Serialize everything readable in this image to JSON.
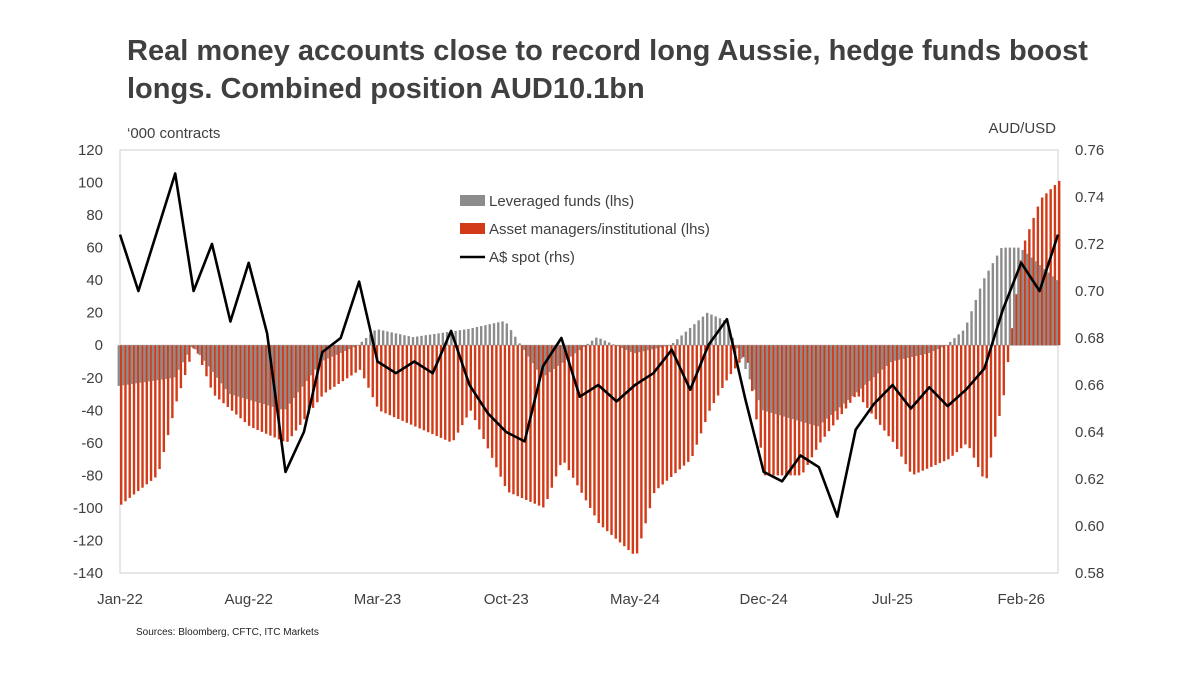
{
  "title": "Real money accounts close to record long Aussie, hedge funds boost longs. Combined position AUD10.1bn",
  "source": "Sources: Bloomberg, CFTC, ITC Markets",
  "colors": {
    "leveraged": "#8c8c8c",
    "asset_managers": "#d23a18",
    "spot": "#000000",
    "text": "#404040"
  },
  "chart_data": {
    "type": "bar",
    "left_axis_unit": "‘000 contracts",
    "right_axis_unit": "AUD/USD",
    "ylim_left": [
      -140,
      120
    ],
    "ylim_right": [
      0.58,
      0.76
    ],
    "yticks_left": [
      "120",
      "100",
      "80",
      "60",
      "40",
      "20",
      "0",
      "-20",
      "-40",
      "-60",
      "-80",
      "-100",
      "-120",
      "-140"
    ],
    "yticks_right": [
      "0.76",
      "0.74",
      "0.72",
      "0.70",
      "0.68",
      "0.66",
      "0.64",
      "0.62",
      "0.60",
      "0.58"
    ],
    "xticks": [
      "Jan-22",
      "Aug-22",
      "Mar-23",
      "Oct-23",
      "May-24",
      "Dec-24",
      "Jul-25",
      "Feb-26"
    ],
    "x_start": "Jan-22",
    "x_end": "Apr-26",
    "legend_position": "top-center",
    "series": [
      {
        "name": "Leveraged funds (lhs)",
        "kind": "bar",
        "axis": "left",
        "points": [
          [
            "Jan-22",
            -25
          ],
          [
            "Apr-22",
            -20
          ],
          [
            "May-22",
            0
          ],
          [
            "Jul-22",
            -30
          ],
          [
            "Oct-22",
            -40
          ],
          [
            "Dec-22",
            -10
          ],
          [
            "Feb-23",
            0
          ],
          [
            "Mar-23",
            10
          ],
          [
            "May-23",
            5
          ],
          [
            "Aug-23",
            10
          ],
          [
            "Oct-23",
            15
          ],
          [
            "Dec-23",
            -20
          ],
          [
            "Mar-24",
            5
          ],
          [
            "May-24",
            -5
          ],
          [
            "Jul-24",
            0
          ],
          [
            "Sep-24",
            20
          ],
          [
            "Oct-24",
            15
          ],
          [
            "Dec-24",
            -40
          ],
          [
            "Mar-25",
            -50
          ],
          [
            "May-25",
            -30
          ],
          [
            "Jul-25",
            -10
          ],
          [
            "Sep-25",
            -5
          ],
          [
            "Oct-25",
            0
          ],
          [
            "Nov-25",
            10
          ],
          [
            "Dec-25",
            40
          ],
          [
            "Jan-26",
            60
          ],
          [
            "Feb-26",
            60
          ],
          [
            "Mar-26",
            50
          ],
          [
            "Apr-26",
            40
          ]
        ]
      },
      {
        "name": "Asset managers/institutional (lhs)",
        "kind": "bar",
        "axis": "left",
        "points": [
          [
            "Jan-22",
            -98
          ],
          [
            "Mar-22",
            -80
          ],
          [
            "Apr-22",
            -35
          ],
          [
            "May-22",
            0
          ],
          [
            "Jun-22",
            -30
          ],
          [
            "Aug-22",
            -50
          ],
          [
            "Oct-22",
            -60
          ],
          [
            "Dec-22",
            -30
          ],
          [
            "Feb-23",
            -15
          ],
          [
            "Mar-23",
            -40
          ],
          [
            "May-23",
            -50
          ],
          [
            "Jul-23",
            -60
          ],
          [
            "Aug-23",
            -40
          ],
          [
            "Oct-23",
            -90
          ],
          [
            "Dec-23",
            -100
          ],
          [
            "Jan-24",
            -70
          ],
          [
            "Mar-24",
            -110
          ],
          [
            "May-24",
            -130
          ],
          [
            "Jun-24",
            -90
          ],
          [
            "Aug-24",
            -70
          ],
          [
            "Sep-24",
            -40
          ],
          [
            "Oct-24",
            -20
          ],
          [
            "Nov-24",
            -5
          ],
          [
            "Dec-24",
            -80
          ],
          [
            "Feb-25",
            -80
          ],
          [
            "Mar-25",
            -60
          ],
          [
            "May-25",
            -30
          ],
          [
            "Jul-25",
            -60
          ],
          [
            "Aug-25",
            -80
          ],
          [
            "Oct-25",
            -70
          ],
          [
            "Nov-25",
            -60
          ],
          [
            "Dec-25",
            -85
          ],
          [
            "Jan-26",
            -30
          ],
          [
            "Feb-26",
            60
          ],
          [
            "Mar-26",
            90
          ],
          [
            "Apr-26",
            101
          ]
        ]
      },
      {
        "name": "A$ spot (rhs)",
        "kind": "line",
        "axis": "right",
        "points": [
          [
            "Jan-22",
            0.724
          ],
          [
            "Feb-22",
            0.7
          ],
          [
            "Mar-22",
            0.725
          ],
          [
            "Apr-22",
            0.75
          ],
          [
            "May-22",
            0.7
          ],
          [
            "Jun-22",
            0.72
          ],
          [
            "Jul-22",
            0.687
          ],
          [
            "Aug-22",
            0.712
          ],
          [
            "Sep-22",
            0.682
          ],
          [
            "Oct-22",
            0.623
          ],
          [
            "Nov-22",
            0.64
          ],
          [
            "Dec-22",
            0.674
          ],
          [
            "Jan-23",
            0.68
          ],
          [
            "Feb-23",
            0.704
          ],
          [
            "Mar-23",
            0.67
          ],
          [
            "Apr-23",
            0.665
          ],
          [
            "May-23",
            0.67
          ],
          [
            "Jun-23",
            0.665
          ],
          [
            "Jul-23",
            0.683
          ],
          [
            "Aug-23",
            0.66
          ],
          [
            "Sep-23",
            0.648
          ],
          [
            "Oct-23",
            0.64
          ],
          [
            "Nov-23",
            0.636
          ],
          [
            "Dec-23",
            0.668
          ],
          [
            "Jan-24",
            0.68
          ],
          [
            "Feb-24",
            0.655
          ],
          [
            "Mar-24",
            0.66
          ],
          [
            "Apr-24",
            0.653
          ],
          [
            "May-24",
            0.66
          ],
          [
            "Jun-24",
            0.665
          ],
          [
            "Jul-24",
            0.675
          ],
          [
            "Aug-24",
            0.658
          ],
          [
            "Sep-24",
            0.677
          ],
          [
            "Oct-24",
            0.688
          ],
          [
            "Nov-24",
            0.654
          ],
          [
            "Dec-24",
            0.623
          ],
          [
            "Jan-25",
            0.619
          ],
          [
            "Feb-25",
            0.63
          ],
          [
            "Mar-25",
            0.625
          ],
          [
            "Apr-25",
            0.604
          ],
          [
            "May-25",
            0.641
          ],
          [
            "Jun-25",
            0.652
          ],
          [
            "Jul-25",
            0.66
          ],
          [
            "Aug-25",
            0.65
          ],
          [
            "Sep-25",
            0.659
          ],
          [
            "Oct-25",
            0.651
          ],
          [
            "Nov-25",
            0.658
          ],
          [
            "Dec-25",
            0.667
          ],
          [
            "Jan-26",
            0.692
          ],
          [
            "Feb-26",
            0.712
          ],
          [
            "Mar-26",
            0.7
          ],
          [
            "Apr-26",
            0.724
          ]
        ]
      }
    ]
  }
}
